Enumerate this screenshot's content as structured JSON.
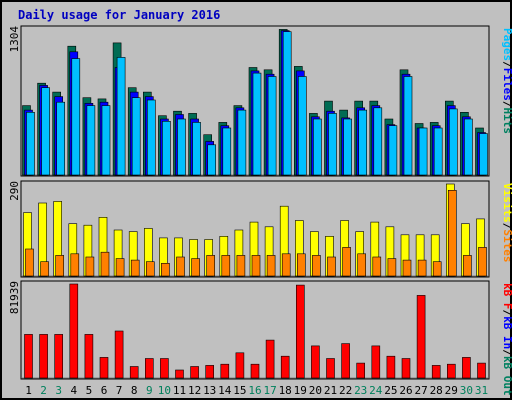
{
  "chart_data": {
    "type": "bar",
    "title": "Daily usage for January 2016",
    "categories": [
      "1",
      "2",
      "3",
      "4",
      "5",
      "6",
      "7",
      "8",
      "9",
      "10",
      "11",
      "12",
      "13",
      "14",
      "15",
      "16",
      "17",
      "18",
      "19",
      "20",
      "21",
      "22",
      "23",
      "24",
      "25",
      "26",
      "27",
      "28",
      "29",
      "30",
      "31"
    ],
    "weekend_days": [
      "2",
      "3",
      "9",
      "10",
      "16",
      "17",
      "23",
      "24",
      "30",
      "31"
    ],
    "panels": [
      {
        "name": "top",
        "ymax_label": "1304",
        "ymax": 1304,
        "legend": [
          {
            "text": "Pages",
            "color": "#00c0ff"
          },
          {
            "text": "/",
            "color": "#000000"
          },
          {
            "text": "Files",
            "color": "#0000ff"
          },
          {
            "text": "/",
            "color": "#000000"
          },
          {
            "text": "Hits",
            "color": "#008060"
          }
        ],
        "series": [
          {
            "name": "Hits",
            "color": "#006c54",
            "values": [
              620,
              820,
              740,
              1150,
              690,
              680,
              1180,
              780,
              740,
              530,
              570,
              550,
              360,
              470,
              620,
              960,
              940,
              1300,
              970,
              550,
              660,
              580,
              660,
              660,
              500,
              940,
              460,
              470,
              660,
              560,
              420
            ]
          },
          {
            "name": "Files",
            "color": "#0000ff",
            "values": [
              580,
              800,
              700,
              1100,
              640,
              650,
              960,
              740,
              700,
              500,
              540,
              500,
              300,
              440,
              600,
              930,
              900,
              1290,
              930,
              520,
              570,
              510,
              600,
              620,
              450,
              900,
              420,
              440,
              620,
              520,
              380
            ]
          },
          {
            "name": "Pages",
            "color": "#00c0ff",
            "values": [
              560,
              780,
              650,
              1040,
              620,
              620,
              1050,
              690,
              670,
              480,
              500,
              470,
              270,
              420,
              580,
              910,
              880,
              1280,
              880,
              500,
              550,
              500,
              580,
              600,
              440,
              880,
              420,
              420,
              590,
              500,
              370
            ]
          }
        ]
      },
      {
        "name": "middle",
        "ymax_label": "290",
        "ymax": 290,
        "legend": [
          {
            "text": "Visits",
            "color": "#ffff00"
          },
          {
            "text": "/",
            "color": "#000000"
          },
          {
            "text": "Sites",
            "color": "#ff8000"
          }
        ],
        "series": [
          {
            "name": "Visits",
            "color": "#ffff00",
            "values": [
              200,
              230,
              235,
              165,
              160,
              185,
              145,
              140,
              150,
              120,
              120,
              115,
              115,
              125,
              145,
              170,
              155,
              220,
              175,
              140,
              125,
              175,
              140,
              170,
              155,
              130,
              130,
              130,
              290,
              165,
              180
            ]
          },
          {
            "name": "Sites",
            "color": "#ff8000",
            "values": [
              85,
              45,
              65,
              70,
              60,
              75,
              55,
              50,
              45,
              40,
              60,
              55,
              65,
              65,
              65,
              65,
              65,
              70,
              70,
              65,
              60,
              90,
              70,
              60,
              55,
              50,
              50,
              45,
              270,
              65,
              90
            ]
          }
        ]
      },
      {
        "name": "bottom",
        "ymax_label": "81939",
        "ymax": 81939,
        "legend": [
          {
            "text": "kB F",
            "color": "#ff0000"
          },
          {
            "text": "/",
            "color": "#000000"
          },
          {
            "text": "kB In",
            "color": "#0000ff"
          },
          {
            "text": "/",
            "color": "#000000"
          },
          {
            "text": "kB Out",
            "color": "#008060"
          }
        ],
        "series": [
          {
            "name": "kB F",
            "color": "#ff0000",
            "values": [
              38000,
              38000,
              38000,
              81939,
              38000,
              18000,
              41000,
              10000,
              17000,
              17000,
              7000,
              10000,
              11000,
              12000,
              22000,
              12000,
              33000,
              19000,
              81000,
              28000,
              17000,
              30000,
              13000,
              28000,
              19000,
              17000,
              72000,
              11000,
              12000,
              18000,
              13000
            ]
          }
        ]
      }
    ]
  }
}
